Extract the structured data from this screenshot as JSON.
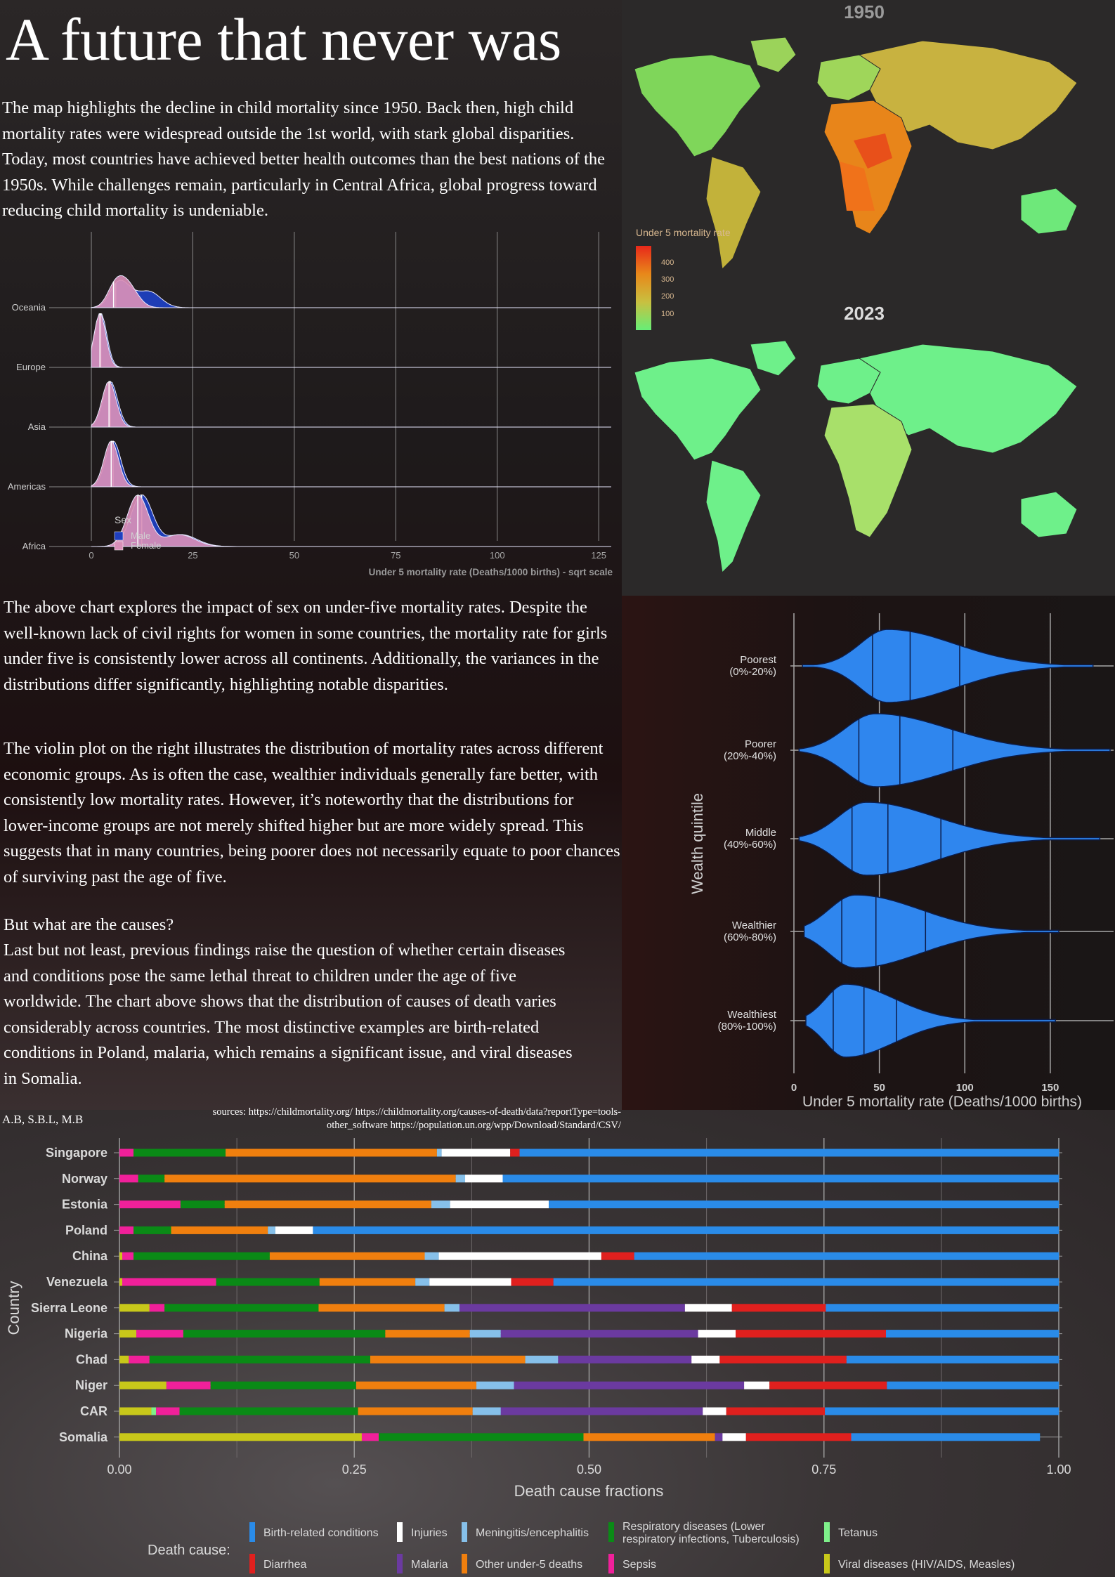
{
  "title": "A future that never was",
  "paragraphs": {
    "intro": "The map highlights the decline in child mortality since 1950. Back then, high child mortality rates were widespread outside the 1st world, with stark global disparities. Today, most countries have achieved better health outcomes than the best nations of the 1950s. While challenges remain, particularly in Central Africa, global progress toward reducing child mortality is undeniable.",
    "sex_chart": "The above chart explores the impact of sex on under-five mortality rates. Despite the well-known lack of civil rights for women in some countries, the mortality rate for girls under five is consistently lower across all continents. Additionally, the variances in the distributions differ significantly, highlighting notable disparities.",
    "violin": "The violin plot on the right illustrates the distribution of mortality rates across different economic groups. As is often the case, wealthier individuals generally fare better, with consistently low mortality rates. However, it’s noteworthy that the distributions for lower-income groups are not merely shifted higher but are more widely spread. This suggests that in many countries, being poorer does not necessarily equate to poor chances of surviving past the age of five.",
    "causes_heading": "But what are the causes?",
    "causes": "Last but not least, previous findings raise the question of whether certain diseases and conditions pose the same lethal threat to children under the age of five worldwide. The chart above shows that the distribution of causes of death varies considerably across countries. The most distinctive examples are birth-related conditions in Poland, malaria, which remains a significant issue, and viral diseases in Somalia."
  },
  "credits": "A.B, S.B.L, M.B",
  "sources": "sources: https://childmortality.org/ https://childmortality.org/causes-of-death/data?reportType=tools-other_software https://population.un.org/wpp/Download/Standard/CSV/",
  "colors": {
    "male": "#1f3fbf",
    "female": "#d98fb8",
    "violin": "#2f86ee",
    "map_2023": "#6ef08a"
  },
  "chart_data": [
    {
      "type": "map",
      "titles": [
        "1950",
        "2023"
      ],
      "legend_title": "Under 5 mortality rate",
      "legend_ticks": [
        400,
        300,
        200,
        100
      ],
      "color_scale": [
        "#66ee77",
        "#c8c040",
        "#e8881a",
        "#e8281a"
      ]
    },
    {
      "type": "ridgeline",
      "categories": [
        "Oceania",
        "Europe",
        "Asia",
        "Americas",
        "Africa"
      ],
      "xlabel": "Under 5 mortality rate (Deaths/1000 births) - sqrt scale",
      "x_ticks": [
        0,
        25,
        50,
        75,
        100,
        125
      ],
      "x_scale": "sqrt",
      "legend_title": "Sex",
      "series": [
        {
          "name": "Male",
          "peaks": {
            "Oceania": [
              [
                36,
                0.28
              ],
              [
                70,
                0.3
              ],
              [
                200,
                0.3
              ]
            ],
            "Europe": [
              [
                5.5,
                1.0
              ]
            ],
            "Asia": [
              [
                22,
                0.85
              ]
            ],
            "Americas": [
              [
                29,
                0.85
              ]
            ],
            "Africa": [
              [
                154,
                0.95
              ],
              [
                490,
                0.22
              ]
            ]
          }
        },
        {
          "name": "Female",
          "peaks": {
            "Oceania": [
              [
                30,
                0.26
              ],
              [
                55,
                0.24
              ],
              [
                90,
                0.3
              ]
            ],
            "Europe": [
              [
                4.5,
                1.0
              ]
            ],
            "Asia": [
              [
                19,
                0.85
              ]
            ],
            "Americas": [
              [
                24,
                0.85
              ]
            ],
            "Africa": [
              [
                131,
                0.95
              ],
              [
                470,
                0.22
              ]
            ]
          }
        }
      ]
    },
    {
      "type": "violin",
      "categories": [
        "Poorest\n(0%-20%)",
        "Poorer\n(20%-40%)",
        "Middle\n(40%-60%)",
        "Wealthier\n(60%-80%)",
        "Wealthiest\n(80%-100%)"
      ],
      "xlabel": "Under 5 mortality rate (Deaths/1000 births)",
      "ylabel": "Wealth quintile",
      "x_ticks": [
        0,
        50,
        100,
        150
      ],
      "xlim": [
        0,
        185
      ],
      "min": [
        5,
        3,
        3,
        6,
        7
      ],
      "max": [
        175,
        185,
        179,
        155,
        153
      ],
      "quartiles": [
        [
          46,
          68,
          97
        ],
        [
          38,
          62,
          93
        ],
        [
          34,
          55,
          86
        ],
        [
          28,
          48,
          77
        ],
        [
          23,
          41,
          60
        ]
      ]
    },
    {
      "type": "stacked_bar",
      "categories": [
        "Singapore",
        "Norway",
        "Estonia",
        "Poland",
        "China",
        "Venezuela",
        "Sierra Leone",
        "Nigeria",
        "Chad",
        "Niger",
        "CAR",
        "Somalia"
      ],
      "xlabel": "Death cause fractions",
      "ylabel": "Country",
      "x_ticks": [
        "0.00",
        "0.25",
        "0.50",
        "0.75",
        "1.00"
      ],
      "xlim": [
        0,
        1
      ],
      "legend_title": "Death cause:",
      "series": [
        {
          "name": "Viral diseases (HIV/AIDS, Measles)",
          "color": "#c8c81a",
          "values": [
            0.0,
            0.0,
            0.0,
            0.0,
            0.003,
            0.003,
            0.032,
            0.018,
            0.01,
            0.05,
            0.034,
            0.258
          ]
        },
        {
          "name": "Tetanus",
          "color": "#7ef08a",
          "values": [
            0.0,
            0.0,
            0.0,
            0.0,
            0.0,
            0.0,
            0.0,
            0.0,
            0.0,
            0.0,
            0.005,
            0.0
          ]
        },
        {
          "name": "Sepsis",
          "color": "#f0209a",
          "values": [
            0.015,
            0.02,
            0.065,
            0.015,
            0.012,
            0.1,
            0.016,
            0.05,
            0.022,
            0.047,
            0.025,
            0.018
          ]
        },
        {
          "name": "Respiratory diseases (Lower respiratory infections, Tuberculosis)",
          "color": "#0a8a16",
          "values": [
            0.098,
            0.028,
            0.047,
            0.04,
            0.145,
            0.11,
            0.164,
            0.215,
            0.235,
            0.155,
            0.19,
            0.218
          ]
        },
        {
          "name": "Other under-5 deaths",
          "color": "#f07f0e",
          "values": [
            0.225,
            0.31,
            0.22,
            0.103,
            0.165,
            0.102,
            0.134,
            0.09,
            0.165,
            0.128,
            0.122,
            0.14
          ]
        },
        {
          "name": "Meningitis/encephalitis",
          "color": "#86c0ea",
          "values": [
            0.005,
            0.01,
            0.02,
            0.008,
            0.015,
            0.015,
            0.016,
            0.033,
            0.035,
            0.04,
            0.03,
            0.0
          ]
        },
        {
          "name": "Malaria",
          "color": "#6b3aa0",
          "values": [
            0.0,
            0.0,
            0.0,
            0.0,
            0.0,
            0.0,
            0.24,
            0.21,
            0.142,
            0.245,
            0.215,
            0.008
          ]
        },
        {
          "name": "Injuries",
          "color": "#ffffff",
          "values": [
            0.073,
            0.04,
            0.105,
            0.04,
            0.173,
            0.087,
            0.05,
            0.04,
            0.03,
            0.027,
            0.025,
            0.025
          ]
        },
        {
          "name": "Diarrhea",
          "color": "#e0201e",
          "values": [
            0.01,
            0.0,
            0.0,
            0.0,
            0.035,
            0.045,
            0.1,
            0.16,
            0.135,
            0.125,
            0.105,
            0.112
          ]
        },
        {
          "name": "Birth-related conditions",
          "color": "#2a8be8",
          "values": [
            0.574,
            0.592,
            0.543,
            0.794,
            0.452,
            0.538,
            0.248,
            0.184,
            0.226,
            0.183,
            0.249,
            0.201
          ]
        }
      ],
      "legend_order": [
        "Birth-related conditions",
        "Injuries",
        "Meningitis/encephalitis",
        "Respiratory diseases (Lower respiratory infections, Tuberculosis)",
        "Tetanus",
        "Diarrhea",
        "Malaria",
        "Other under-5 deaths",
        "Sepsis",
        "Viral diseases (HIV/AIDS, Measles)"
      ]
    }
  ]
}
